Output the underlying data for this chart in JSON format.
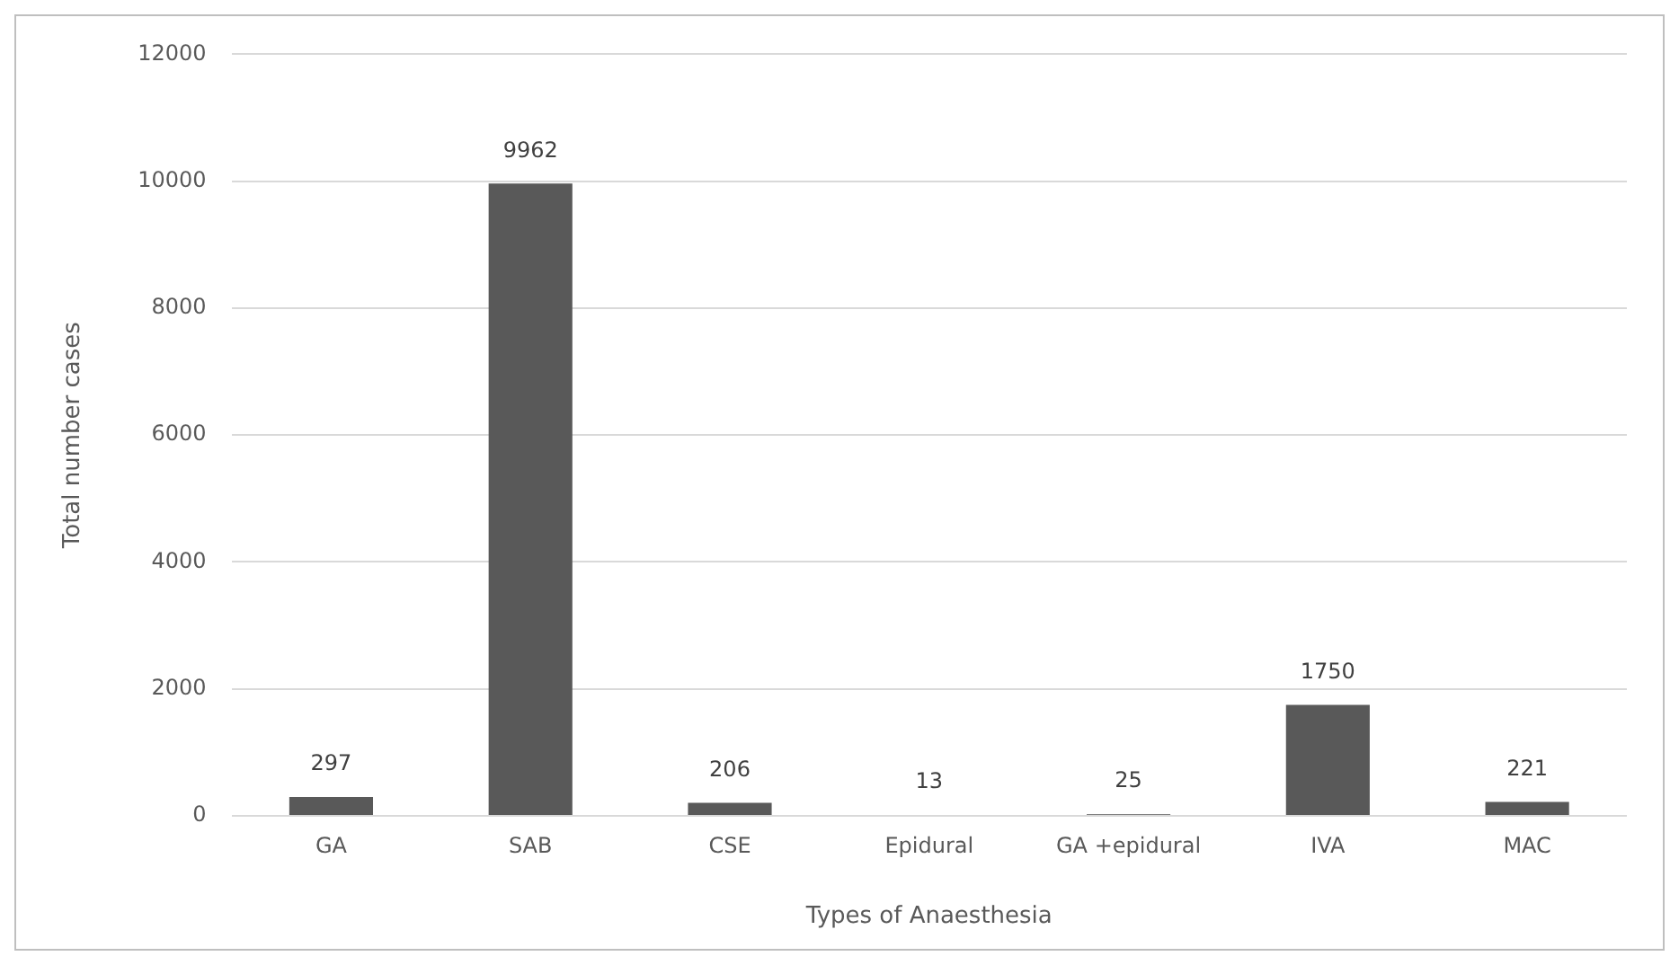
{
  "chart_data": {
    "type": "bar",
    "xlabel": "Types of Anaesthesia",
    "ylabel": "Total number cases",
    "categories": [
      "GA",
      "SAB",
      "CSE",
      "Epidural",
      "GA +epidural",
      "IVA",
      "MAC"
    ],
    "values": [
      297,
      9962,
      206,
      13,
      25,
      1750,
      221
    ],
    "color": "#595959",
    "ylim": [
      0,
      12000
    ],
    "yticks": [
      0,
      2000,
      4000,
      6000,
      8000,
      10000,
      12000
    ],
    "grid": "y",
    "legend": false,
    "data_labels": true
  }
}
